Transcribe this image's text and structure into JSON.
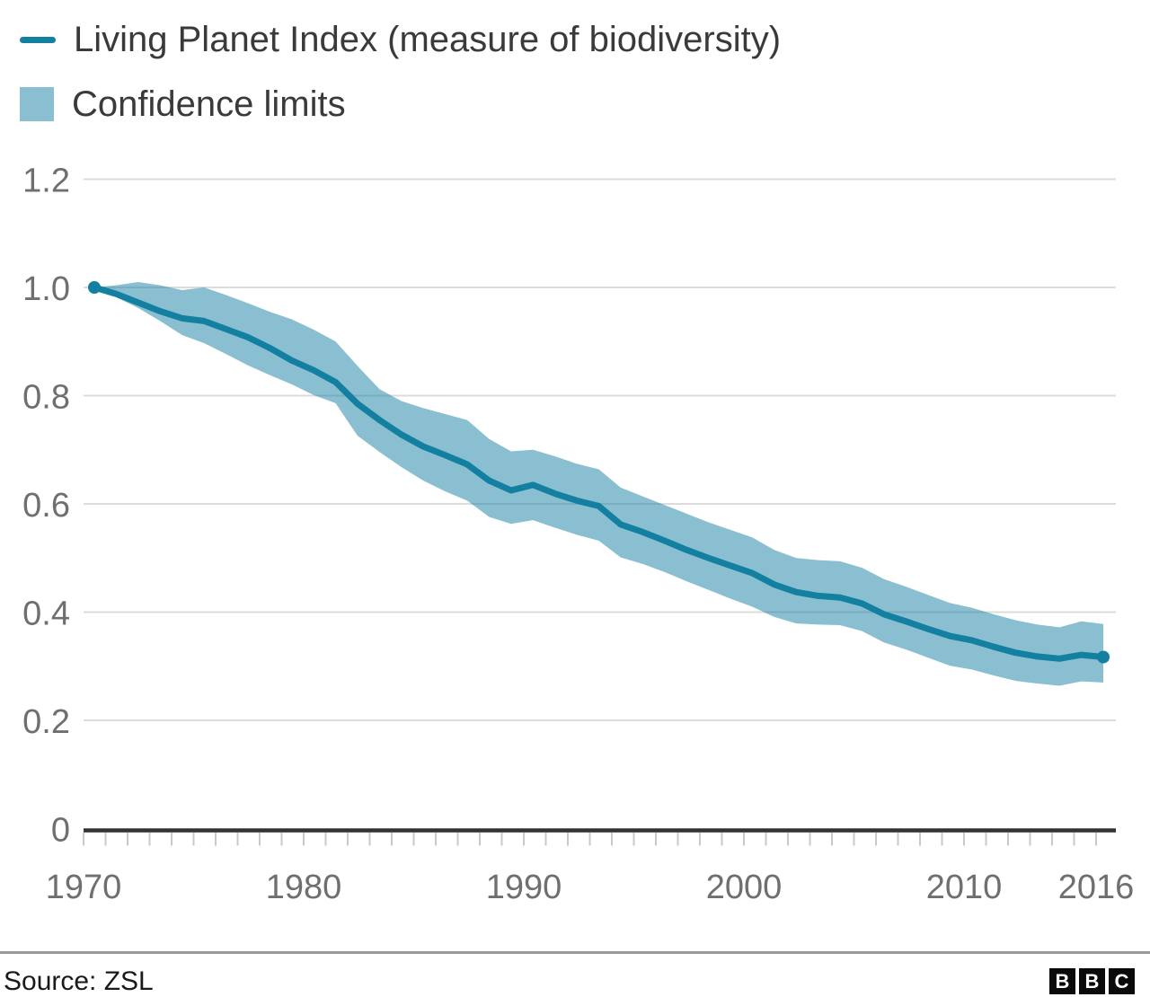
{
  "legend": {
    "line_label": "Living Planet Index (measure of biodiversity)",
    "band_label": "Confidence limits"
  },
  "source": {
    "label": "Source: ZSL"
  },
  "logo": {
    "letters": [
      "B",
      "B",
      "C"
    ]
  },
  "colors": {
    "line": "#1380a1",
    "band": "rgba(19,128,161,0.5)",
    "band_solid": "#89bfd0",
    "gridline": "#dcdcdc",
    "axis": "#333333",
    "tick": "#c9c9c9",
    "axis_label": "#6f6f6f"
  },
  "chart_data": {
    "type": "line",
    "title": "",
    "xlabel": "",
    "ylabel": "",
    "xlim": [
      1970,
      2016
    ],
    "ylim": [
      0,
      1.2
    ],
    "grid": "horizontal",
    "legend_position": "top-left",
    "x": [
      1970,
      1971,
      1972,
      1973,
      1974,
      1975,
      1976,
      1977,
      1978,
      1979,
      1980,
      1981,
      1982,
      1983,
      1984,
      1985,
      1986,
      1987,
      1988,
      1989,
      1990,
      1991,
      1992,
      1993,
      1994,
      1995,
      1996,
      1997,
      1998,
      1999,
      2000,
      2001,
      2002,
      2003,
      2004,
      2005,
      2006,
      2007,
      2008,
      2009,
      2010,
      2011,
      2012,
      2013,
      2014,
      2015,
      2016
    ],
    "xticks_labeled": [
      1970,
      1980,
      1990,
      2000,
      2010,
      2016
    ],
    "yticks": [
      0,
      0.2,
      0.4,
      0.6,
      0.8,
      1.0,
      1.2
    ],
    "ytick_labels": [
      "0",
      "0.2",
      "0.4",
      "0.6",
      "0.8",
      "1.0",
      "1.2"
    ],
    "series": [
      {
        "name": "Living Planet Index",
        "values": [
          1.0,
          0.988,
          0.972,
          0.956,
          0.943,
          0.938,
          0.923,
          0.908,
          0.888,
          0.865,
          0.847,
          0.825,
          0.785,
          0.755,
          0.728,
          0.706,
          0.69,
          0.673,
          0.643,
          0.625,
          0.635,
          0.619,
          0.606,
          0.596,
          0.562,
          0.548,
          0.532,
          0.515,
          0.5,
          0.486,
          0.472,
          0.451,
          0.437,
          0.43,
          0.427,
          0.416,
          0.396,
          0.383,
          0.369,
          0.356,
          0.348,
          0.336,
          0.325,
          0.318,
          0.314,
          0.321,
          0.317
        ]
      },
      {
        "name": "Upper confidence limit",
        "values": [
          1.0,
          1.004,
          1.01,
          1.004,
          0.995,
          1.0,
          0.986,
          0.971,
          0.955,
          0.941,
          0.922,
          0.9,
          0.855,
          0.812,
          0.79,
          0.777,
          0.766,
          0.755,
          0.72,
          0.697,
          0.7,
          0.688,
          0.674,
          0.664,
          0.63,
          0.614,
          0.598,
          0.582,
          0.566,
          0.552,
          0.538,
          0.515,
          0.5,
          0.496,
          0.494,
          0.482,
          0.461,
          0.447,
          0.432,
          0.417,
          0.408,
          0.396,
          0.385,
          0.377,
          0.372,
          0.383,
          0.378
        ]
      },
      {
        "name": "Lower confidence limit",
        "values": [
          1.0,
          0.982,
          0.962,
          0.938,
          0.912,
          0.897,
          0.877,
          0.856,
          0.838,
          0.821,
          0.801,
          0.786,
          0.726,
          0.696,
          0.668,
          0.643,
          0.623,
          0.606,
          0.576,
          0.563,
          0.57,
          0.556,
          0.543,
          0.532,
          0.501,
          0.489,
          0.474,
          0.457,
          0.441,
          0.425,
          0.41,
          0.391,
          0.379,
          0.377,
          0.376,
          0.365,
          0.344,
          0.331,
          0.316,
          0.301,
          0.294,
          0.283,
          0.273,
          0.268,
          0.264,
          0.272,
          0.27
        ]
      }
    ]
  }
}
